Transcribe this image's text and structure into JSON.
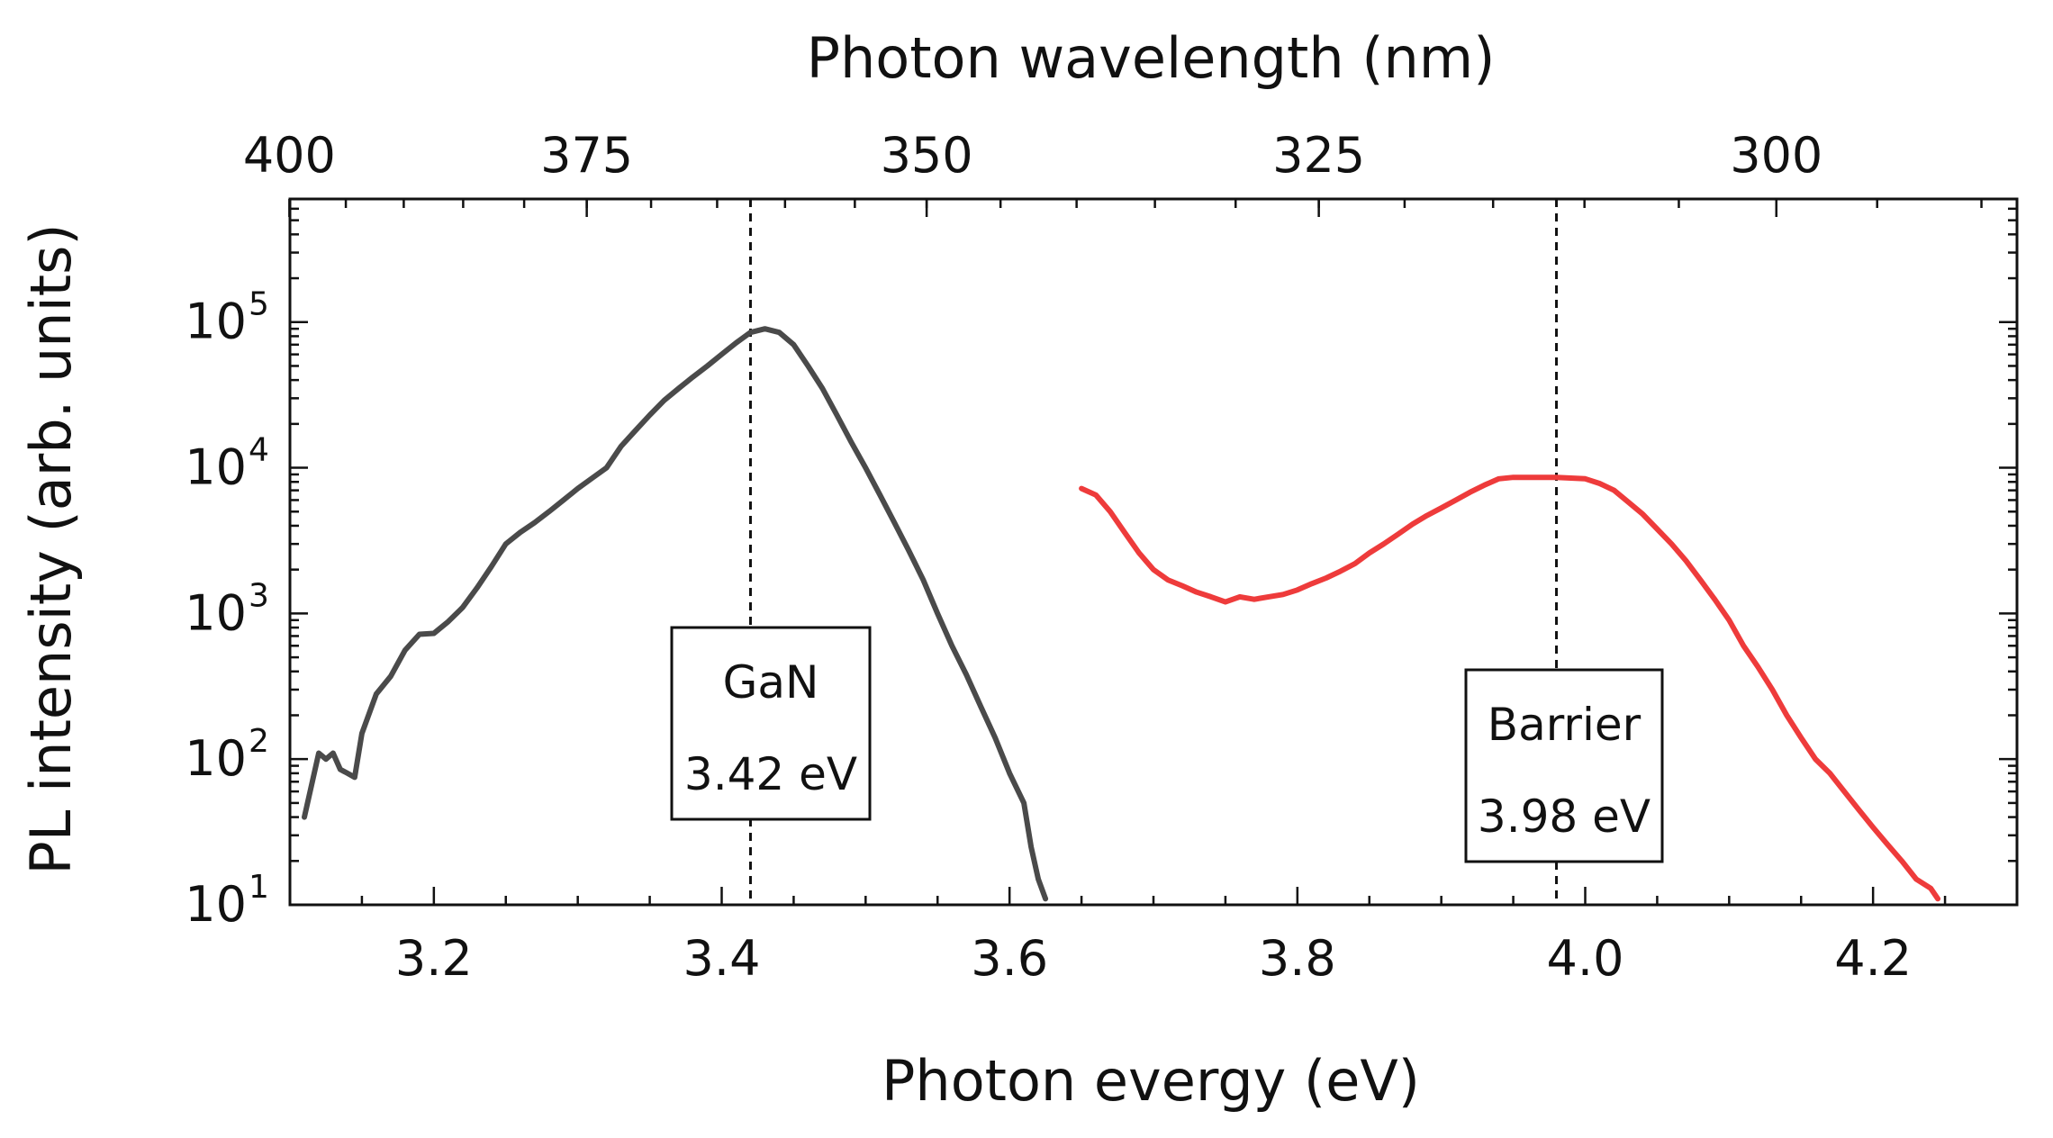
{
  "chart_data": {
    "type": "line",
    "xlabel": "Photon evergy (eV)",
    "ylabel": "PL intensity (arb. units)",
    "top_xlabel": "Photon wavelength (nm)",
    "xlim": [
      3.1,
      4.3
    ],
    "ylim": [
      10,
      700000
    ],
    "yscale": "log",
    "x_ticks": [
      {
        "value": 3.2,
        "label": "3.2"
      },
      {
        "value": 3.4,
        "label": "3.4"
      },
      {
        "value": 3.6,
        "label": "3.6"
      },
      {
        "value": 3.8,
        "label": "3.8"
      },
      {
        "value": 4.0,
        "label": "4.0"
      },
      {
        "value": 4.2,
        "label": "4.2"
      }
    ],
    "y_ticks": [
      {
        "value": 10,
        "base": "10",
        "exp": "1"
      },
      {
        "value": 100,
        "base": "10",
        "exp": "2"
      },
      {
        "value": 1000,
        "base": "10",
        "exp": "3"
      },
      {
        "value": 10000,
        "base": "10",
        "exp": "4"
      },
      {
        "value": 100000,
        "base": "10",
        "exp": "5"
      }
    ],
    "top_ticks": [
      {
        "wavelength": 400,
        "label": "400"
      },
      {
        "wavelength": 375,
        "label": "375"
      },
      {
        "wavelength": 350,
        "label": "350"
      },
      {
        "wavelength": 325,
        "label": "325"
      },
      {
        "wavelength": 300,
        "label": "300"
      }
    ],
    "grid": false,
    "series": [
      {
        "color": "#4a4a4a",
        "x": [
          3.11,
          3.12,
          3.125,
          3.13,
          3.135,
          3.14,
          3.145,
          3.15,
          3.16,
          3.17,
          3.18,
          3.19,
          3.2,
          3.21,
          3.22,
          3.23,
          3.24,
          3.25,
          3.26,
          3.27,
          3.28,
          3.29,
          3.3,
          3.31,
          3.32,
          3.33,
          3.34,
          3.35,
          3.36,
          3.37,
          3.38,
          3.39,
          3.4,
          3.41,
          3.42,
          3.43,
          3.44,
          3.45,
          3.46,
          3.47,
          3.48,
          3.49,
          3.5,
          3.51,
          3.52,
          3.53,
          3.54,
          3.55,
          3.56,
          3.57,
          3.58,
          3.59,
          3.6,
          3.61,
          3.615,
          3.62,
          3.625
        ],
        "y": [
          40,
          110,
          100,
          110,
          85,
          80,
          75,
          150,
          280,
          370,
          560,
          720,
          730,
          880,
          1100,
          1500,
          2100,
          3000,
          3600,
          4200,
          5000,
          6000,
          7200,
          8500,
          10000,
          14000,
          18000,
          23000,
          29000,
          35000,
          42000,
          50000,
          60000,
          72000,
          85000,
          90000,
          85000,
          70000,
          50000,
          35000,
          23000,
          15000,
          10000,
          6500,
          4200,
          2700,
          1700,
          1000,
          600,
          380,
          230,
          140,
          80,
          50,
          25,
          15,
          11
        ]
      },
      {
        "color": "#ee3b3b",
        "x": [
          3.65,
          3.66,
          3.67,
          3.68,
          3.69,
          3.7,
          3.71,
          3.72,
          3.73,
          3.74,
          3.75,
          3.76,
          3.77,
          3.78,
          3.79,
          3.8,
          3.81,
          3.82,
          3.83,
          3.84,
          3.85,
          3.86,
          3.87,
          3.88,
          3.89,
          3.9,
          3.91,
          3.92,
          3.93,
          3.94,
          3.95,
          3.96,
          3.97,
          3.98,
          3.99,
          4.0,
          4.01,
          4.02,
          4.03,
          4.04,
          4.05,
          4.06,
          4.07,
          4.08,
          4.09,
          4.1,
          4.11,
          4.12,
          4.13,
          4.14,
          4.15,
          4.16,
          4.17,
          4.18,
          4.19,
          4.2,
          4.21,
          4.22,
          4.23,
          4.24,
          4.245
        ],
        "y": [
          7200,
          6500,
          5000,
          3600,
          2600,
          2000,
          1700,
          1550,
          1400,
          1300,
          1200,
          1300,
          1250,
          1300,
          1350,
          1450,
          1600,
          1750,
          1950,
          2200,
          2600,
          3000,
          3500,
          4100,
          4700,
          5300,
          6000,
          6800,
          7600,
          8400,
          8600,
          8600,
          8600,
          8600,
          8500,
          8400,
          7800,
          7000,
          5800,
          4800,
          3800,
          3000,
          2300,
          1700,
          1250,
          900,
          600,
          430,
          300,
          200,
          140,
          100,
          80,
          60,
          45,
          34,
          26,
          20,
          15,
          13,
          11
        ]
      }
    ],
    "reference_lines": [
      {
        "x": 3.42,
        "style": "dashed"
      },
      {
        "x": 3.98,
        "style": "dashed"
      }
    ],
    "annotations": [
      {
        "name": "GaN",
        "value_label": "3.42 eV"
      },
      {
        "name": "Barrier",
        "value_label": "3.98 eV"
      }
    ]
  }
}
